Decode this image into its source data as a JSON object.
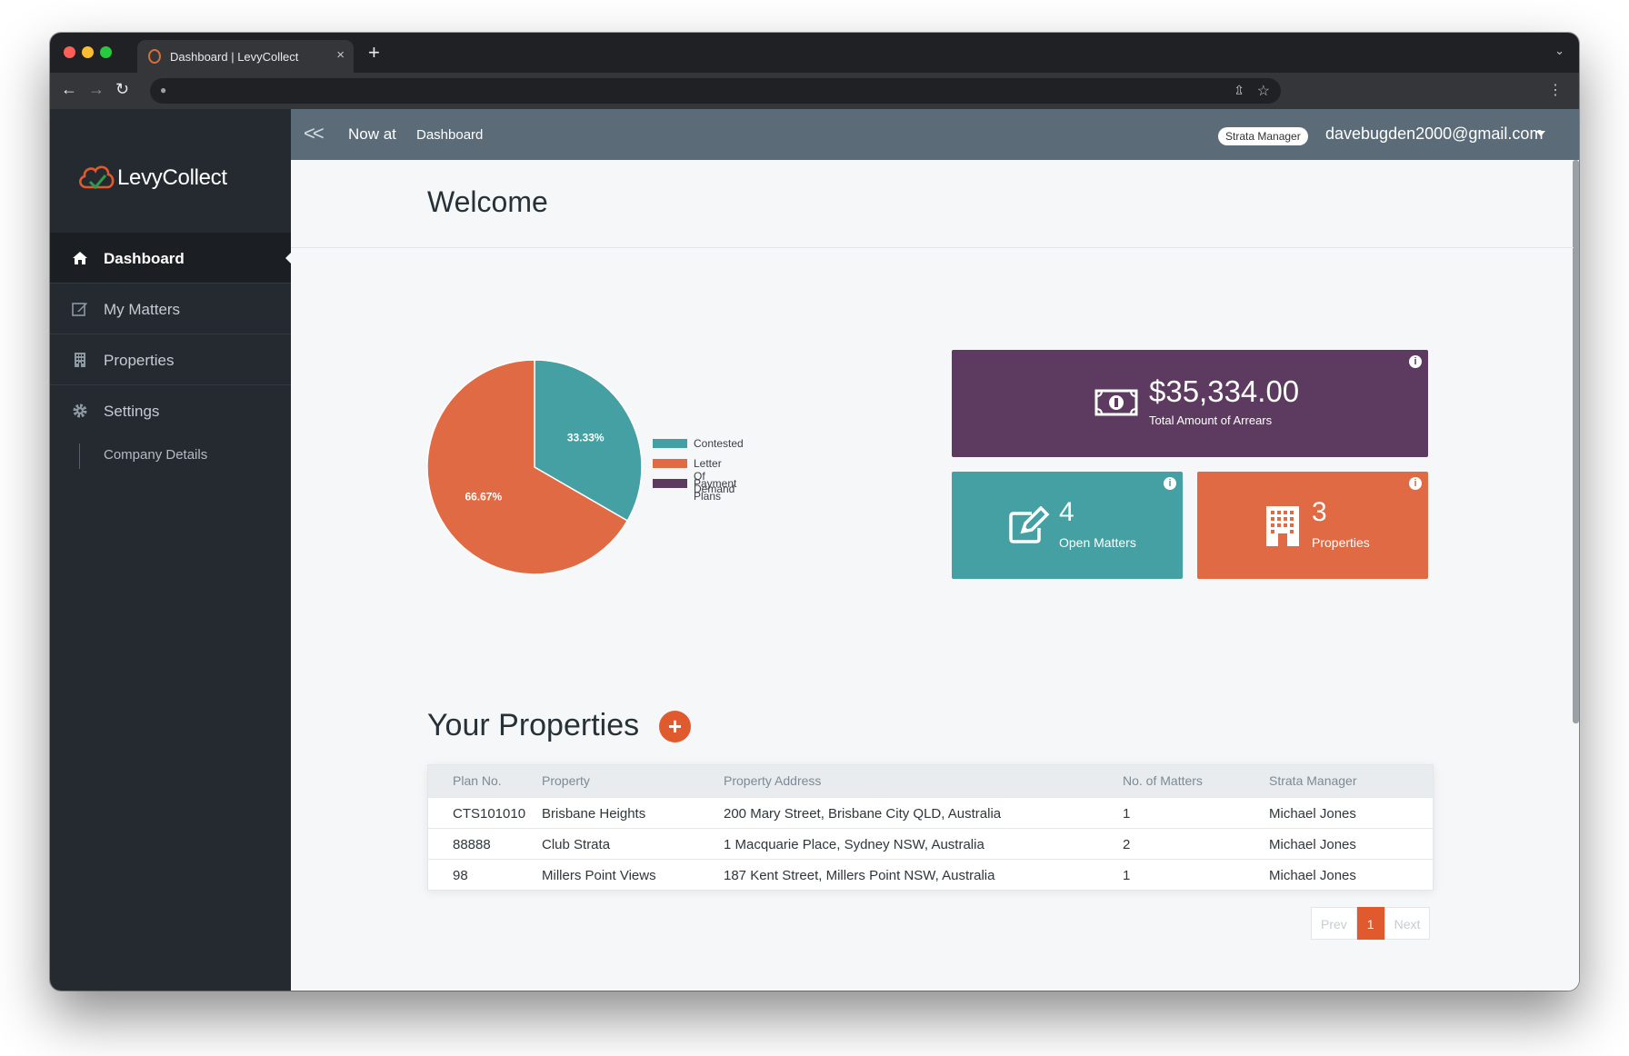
{
  "browser": {
    "tab_title": "Dashboard | LevyCollect",
    "tab_close": "×",
    "new_tab": "+",
    "colors": {
      "close": "#ff5f57",
      "minimize": "#febc2e",
      "maximize": "#28c840"
    }
  },
  "sidebar": {
    "logo_text": "LevyCollect",
    "items": [
      {
        "label": "Dashboard",
        "icon": "home-icon",
        "active": true
      },
      {
        "label": "My Matters",
        "icon": "edit-icon",
        "active": false
      },
      {
        "label": "Properties",
        "icon": "building-icon",
        "active": false
      },
      {
        "label": "Settings",
        "icon": "gear-icon",
        "active": false
      }
    ],
    "sub_items": [
      {
        "label": "Company Details"
      }
    ]
  },
  "topbar": {
    "back_symbol": "<<",
    "now_at": "Now at",
    "breadcrumb": "Dashboard",
    "role_badge": "Strata Manager",
    "user_email": "davebugden2000@gmail.com"
  },
  "page": {
    "title": "Welcome"
  },
  "chart_data": {
    "type": "pie",
    "slices": [
      {
        "label": "Contested",
        "value": 33.33,
        "color": "#44a0a2",
        "data_label": "33.33%"
      },
      {
        "label": "Letter Of Demand",
        "value": 66.67,
        "color": "#e06a44",
        "data_label": "66.67%"
      },
      {
        "label": "Payment Plans",
        "value": 0,
        "color": "#5d3a60",
        "data_label": ""
      }
    ],
    "legend_position": "right"
  },
  "stats": {
    "arrears": {
      "value": "$35,334.00",
      "label": "Total Amount of Arrears",
      "color": "#5d3a60"
    },
    "matters": {
      "value": "4",
      "label": "Open Matters",
      "color": "#44a0a2"
    },
    "properties": {
      "value": "3",
      "label": "Properties",
      "color": "#e06a44"
    },
    "info_symbol": "i"
  },
  "properties_section": {
    "title": "Your Properties",
    "add_symbol": "+",
    "columns": [
      "Plan No.",
      "Property",
      "Property Address",
      "No. of Matters",
      "Strata Manager"
    ],
    "rows": [
      [
        "CTS101010",
        "Brisbane Heights",
        "200 Mary Street, Brisbane City QLD, Australia",
        "1",
        "Michael Jones"
      ],
      [
        "88888",
        "Club Strata",
        "1 Macquarie Place, Sydney NSW, Australia",
        "2",
        "Michael Jones"
      ],
      [
        "98",
        "Millers Point Views",
        "187 Kent Street, Millers Point NSW, Australia",
        "1",
        "Michael Jones"
      ]
    ],
    "pagination": {
      "prev": "Prev",
      "current": "1",
      "next": "Next"
    }
  }
}
